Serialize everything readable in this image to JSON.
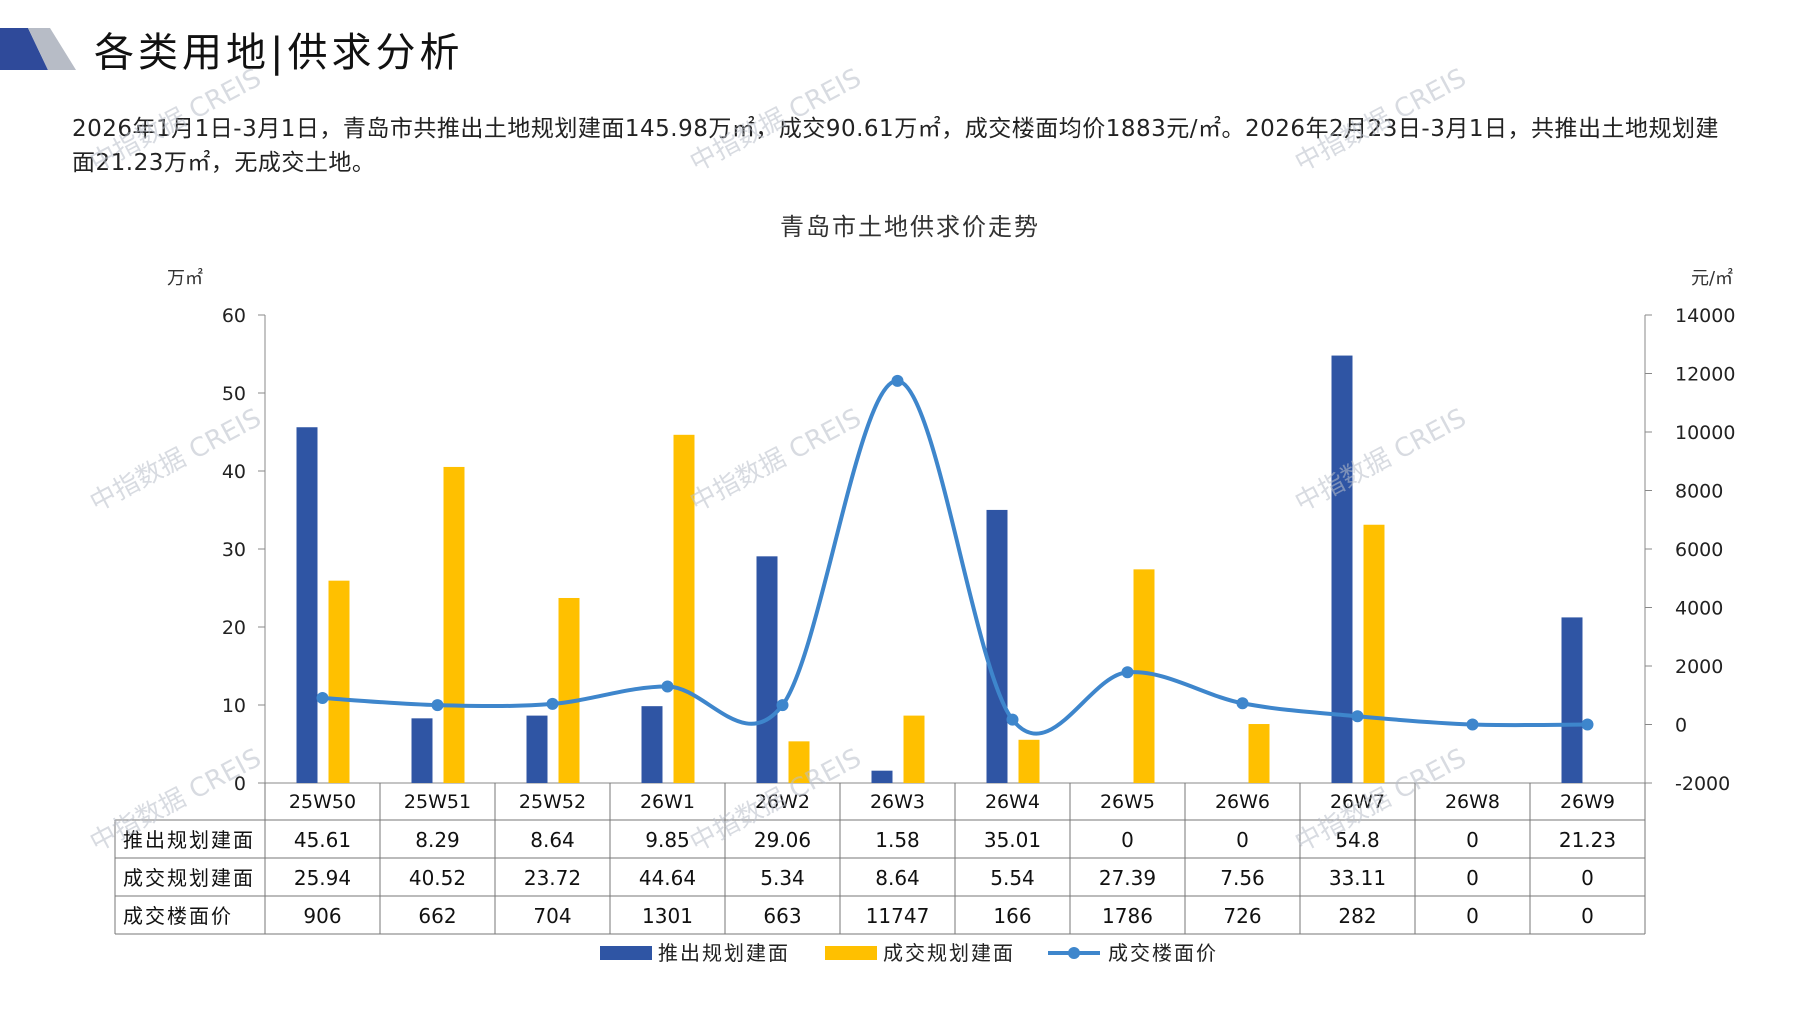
{
  "page": {
    "title": "各类用地|供求分析",
    "summary": "2026年1月1日-3月1日，青岛市共推出土地规划建面145.98万㎡，成交90.61万㎡，成交楼面均价1883元/㎡。2026年2月23日-3月1日，共推出土地规划建面21.23万㎡，无成交土地。",
    "watermark": "中指数据 CREIS"
  },
  "colors": {
    "supply": "#2F55A4",
    "deal": "#FFC000",
    "price": "#3E86CC",
    "logo_dark": "#2F4A9A",
    "logo_light": "#B7BCC6",
    "grid": "#888888"
  },
  "chart_data": {
    "type": "bar",
    "title": "青岛市土地供求价走势",
    "left_unit": "万㎡",
    "right_unit": "元/㎡",
    "ylim_left": [
      0,
      60
    ],
    "yticks_left": [
      0,
      10,
      20,
      30,
      40,
      50,
      60
    ],
    "ylim_right": [
      -2000,
      14000
    ],
    "yticks_right": [
      -2000,
      0,
      2000,
      4000,
      6000,
      8000,
      10000,
      12000,
      14000
    ],
    "categories": [
      "25W50",
      "25W51",
      "25W52",
      "26W1",
      "26W2",
      "26W3",
      "26W4",
      "26W5",
      "26W6",
      "26W7",
      "26W8",
      "26W9"
    ],
    "series": [
      {
        "name": "推出规划建面",
        "type": "bar",
        "axis": "left",
        "values": [
          45.61,
          8.29,
          8.64,
          9.85,
          29.06,
          1.58,
          35.01,
          0,
          0,
          54.8,
          0,
          21.23
        ],
        "labels": [
          "45.61",
          "8.29",
          "8.64",
          "9.85",
          "29.06",
          "1.58",
          "35.01",
          "0",
          "0",
          "54.8",
          "0",
          "21.23"
        ]
      },
      {
        "name": "成交规划建面",
        "type": "bar",
        "axis": "left",
        "values": [
          25.94,
          40.52,
          23.72,
          44.64,
          5.34,
          8.64,
          5.54,
          27.39,
          7.56,
          33.11,
          0,
          0
        ],
        "labels": [
          "25.94",
          "40.52",
          "23.72",
          "44.64",
          "5.34",
          "8.64",
          "5.54",
          "27.39",
          "7.56",
          "33.11",
          "0",
          "0"
        ]
      },
      {
        "name": "成交楼面价",
        "type": "line",
        "axis": "right",
        "values": [
          906,
          662,
          704,
          1301,
          663,
          11747,
          166,
          1786,
          726,
          282,
          0,
          0
        ],
        "labels": [
          "906",
          "662",
          "704",
          "1301",
          "663",
          "11747",
          "166",
          "1786",
          "726",
          "282",
          "0",
          "0"
        ]
      }
    ],
    "legend_position": "bottom",
    "grid": false
  }
}
